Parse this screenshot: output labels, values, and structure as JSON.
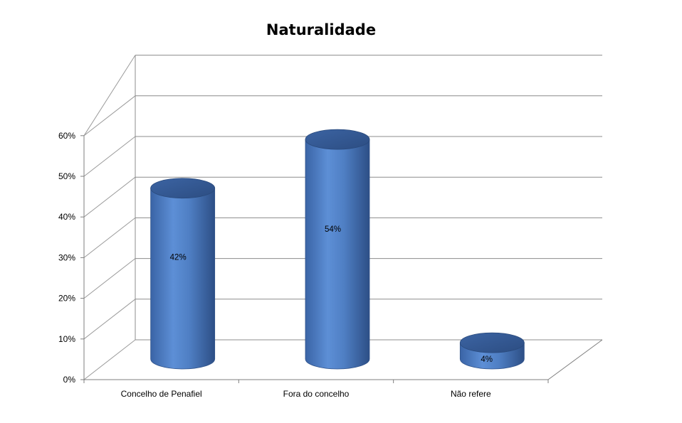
{
  "chart_data": {
    "type": "bar",
    "title": "Naturalidade",
    "categories": [
      "Concelho de Penafiel",
      "Fora do concelho",
      "Não refere"
    ],
    "values": [
      42,
      54,
      4
    ],
    "data_labels": [
      "42%",
      "54%",
      "4%"
    ],
    "y_ticks": [
      "0%",
      "10%",
      "20%",
      "30%",
      "40%",
      "50%",
      "60%"
    ],
    "ylim": [
      0,
      60
    ],
    "xlabel": "",
    "ylabel": "",
    "grid": true,
    "legend": "none",
    "style": "3d-cylinder",
    "bar_color": "#4f81bd"
  }
}
